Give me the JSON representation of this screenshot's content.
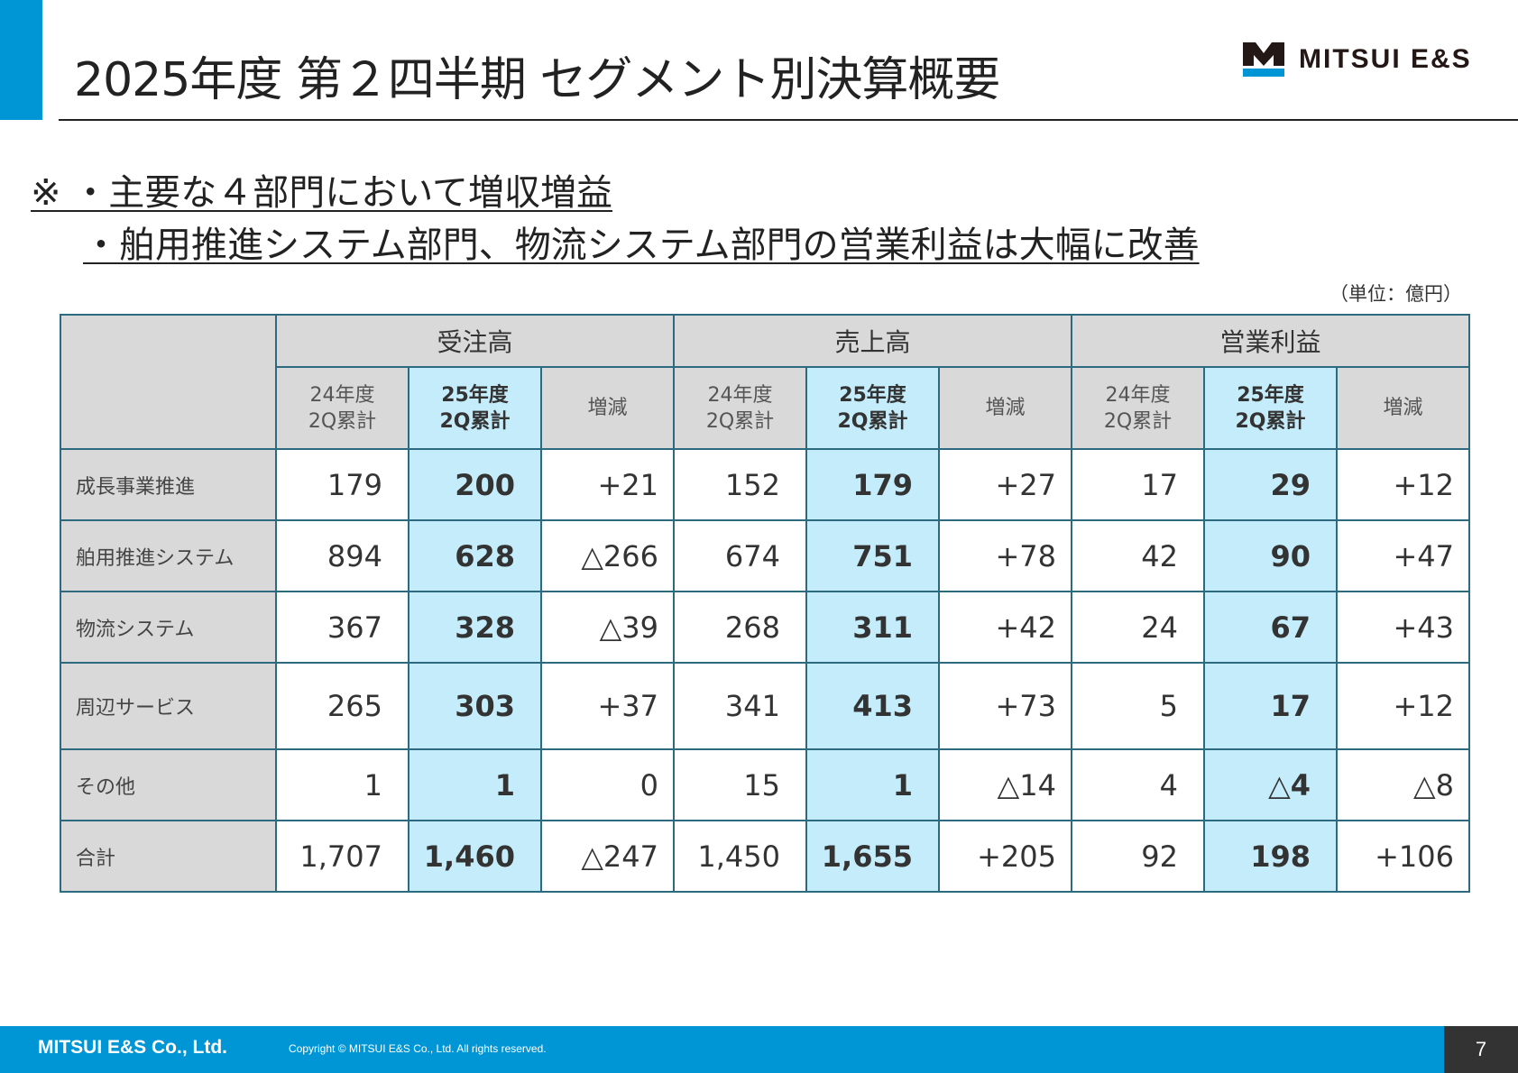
{
  "header": {
    "title": "2025年度 第２四半期 セグメント別決算概要",
    "logo_text": "MITSUI E&S",
    "accent_color": "#0096d6"
  },
  "notes": [
    "※ ・主要な４部門において増収増益",
    "・舶用推進システム部門、物流システム部門の営業利益は大幅に改善"
  ],
  "unit": "（単位：億円）",
  "table": {
    "groups": [
      "受注高",
      "売上高",
      "営業利益"
    ],
    "subheaders": [
      [
        "24年度",
        "2Q累計"
      ],
      [
        "25年度",
        "2Q累計"
      ],
      [
        "増減"
      ]
    ],
    "rows": [
      {
        "label": "成長事業推進",
        "values": [
          "179",
          "200",
          "+21",
          "152",
          "179",
          "+27",
          "17",
          "29",
          "+12"
        ]
      },
      {
        "label": "舶用推進システム",
        "values": [
          "894",
          "628",
          "△266",
          "674",
          "751",
          "+78",
          "42",
          "90",
          "+47"
        ]
      },
      {
        "label": "物流システム",
        "values": [
          "367",
          "328",
          "△39",
          "268",
          "311",
          "+42",
          "24",
          "67",
          "+43"
        ]
      },
      {
        "label": "周辺サービス",
        "values": [
          "265",
          "303",
          "+37",
          "341",
          "413",
          "+73",
          "5",
          "17",
          "+12"
        ]
      },
      {
        "label": "その他",
        "values": [
          "1",
          "1",
          "0",
          "15",
          "1",
          "△14",
          "4",
          "△4",
          "△8"
        ]
      },
      {
        "label": "合計",
        "values": [
          "1,707",
          "1,460",
          "△247",
          "1,450",
          "1,655",
          "+205",
          "92",
          "198",
          "+106"
        ]
      }
    ]
  },
  "footer": {
    "company": "MITSUI E&S Co., Ltd.",
    "copyright": "Copyright © MITSUI E&S Co., Ltd. All rights reserved.",
    "page": "7"
  }
}
